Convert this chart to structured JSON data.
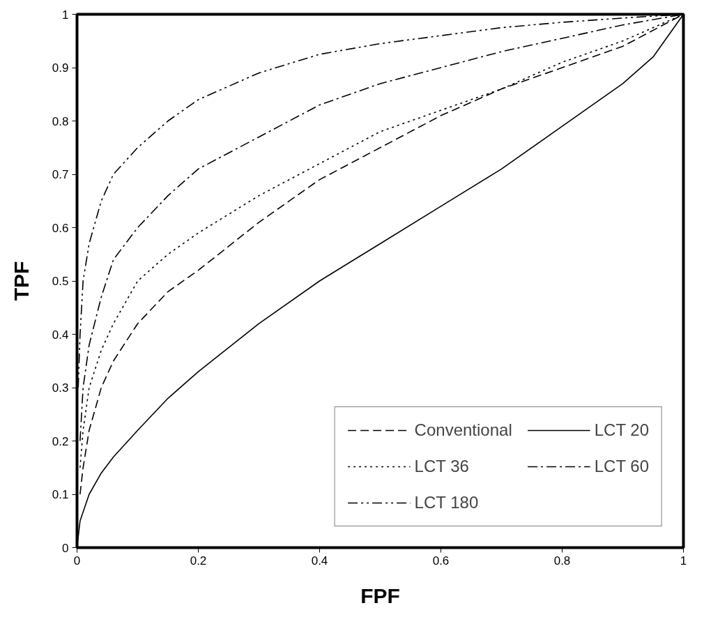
{
  "chart_data": {
    "type": "line",
    "xlabel": "FPF",
    "ylabel": "TPF",
    "xlim": [
      0,
      1
    ],
    "ylim": [
      0,
      1
    ],
    "xticks": [
      0,
      0.2,
      0.4,
      0.6,
      0.8,
      1
    ],
    "yticks": [
      0,
      0.1,
      0.2,
      0.3,
      0.4,
      0.5,
      0.6,
      0.7,
      0.8,
      0.9,
      1
    ],
    "grid": false,
    "legend": "bottom right",
    "marker": "none",
    "series": [
      {
        "name": "Conventional",
        "color": "#000000",
        "line_style": "dashed",
        "x": [
          0.005,
          0.01,
          0.02,
          0.04,
          0.06,
          0.1,
          0.15,
          0.2,
          0.3,
          0.4,
          0.5,
          0.6,
          0.7,
          0.8,
          0.9,
          1
        ],
        "values": [
          0.1,
          0.15,
          0.22,
          0.3,
          0.35,
          0.42,
          0.48,
          0.52,
          0.61,
          0.69,
          0.75,
          0.81,
          0.86,
          0.9,
          0.94,
          1
        ]
      },
      {
        "name": "LCT 20",
        "color": "#000000",
        "line_style": "solid",
        "x": [
          0,
          0.005,
          0.02,
          0.04,
          0.06,
          0.1,
          0.15,
          0.2,
          0.3,
          0.4,
          0.5,
          0.6,
          0.7,
          0.8,
          0.9,
          0.95,
          1
        ],
        "values": [
          0,
          0.05,
          0.1,
          0.14,
          0.17,
          0.22,
          0.28,
          0.33,
          0.42,
          0.5,
          0.57,
          0.64,
          0.71,
          0.79,
          0.87,
          0.92,
          1
        ]
      },
      {
        "name": "LCT 36",
        "color": "#000000",
        "line_style": "dotted",
        "x": [
          0.005,
          0.01,
          0.02,
          0.04,
          0.06,
          0.1,
          0.15,
          0.2,
          0.3,
          0.4,
          0.5,
          0.6,
          0.7,
          0.8,
          0.9,
          1
        ],
        "values": [
          0.15,
          0.22,
          0.3,
          0.37,
          0.42,
          0.5,
          0.55,
          0.59,
          0.66,
          0.72,
          0.78,
          0.82,
          0.86,
          0.91,
          0.95,
          1
        ]
      },
      {
        "name": "LCT 60",
        "color": "#000000",
        "line_style": "dashdot",
        "x": [
          0.005,
          0.01,
          0.02,
          0.04,
          0.06,
          0.1,
          0.15,
          0.2,
          0.3,
          0.4,
          0.5,
          0.6,
          0.7,
          0.8,
          0.9,
          1
        ],
        "values": [
          0.2,
          0.3,
          0.38,
          0.47,
          0.54,
          0.6,
          0.66,
          0.71,
          0.77,
          0.83,
          0.87,
          0.9,
          0.93,
          0.955,
          0.98,
          1
        ]
      },
      {
        "name": "LCT 180",
        "color": "#000000",
        "line_style": "dashdotdot",
        "x": [
          0.002,
          0.005,
          0.01,
          0.02,
          0.04,
          0.06,
          0.1,
          0.15,
          0.2,
          0.3,
          0.4,
          0.5,
          0.6,
          0.7,
          0.8,
          0.9,
          1
        ],
        "values": [
          0.3,
          0.4,
          0.5,
          0.57,
          0.65,
          0.7,
          0.75,
          0.8,
          0.84,
          0.89,
          0.925,
          0.945,
          0.96,
          0.975,
          0.985,
          0.993,
          1
        ]
      }
    ]
  }
}
